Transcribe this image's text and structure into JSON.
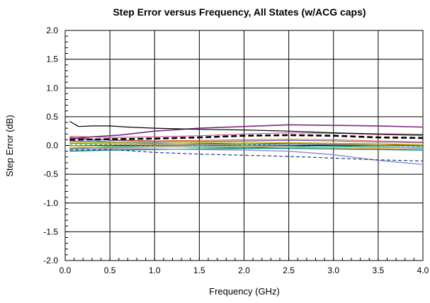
{
  "chart_data": {
    "type": "line",
    "title": "Step Error versus Frequency, All States (w/ACG caps)",
    "xlabel": "Frequency (GHz)",
    "ylabel": "Step Error (dB)",
    "xlim": [
      0.0,
      4.0
    ],
    "ylim": [
      -2.0,
      2.0
    ],
    "x_ticks": [
      "0.0",
      "0.5",
      "1.0",
      "1.5",
      "2.0",
      "2.5",
      "3.0",
      "3.5",
      "4.0"
    ],
    "y_ticks": [
      "2.0",
      "1.5",
      "1.0",
      "0.5",
      "0.0",
      "-0.5",
      "-1.0",
      "-1.5",
      "-2.0"
    ],
    "grid": true,
    "legend": "none",
    "series": [
      {
        "color": "#000000",
        "dash": "",
        "width": 1.2,
        "x": [
          0.05,
          0.15,
          0.3,
          0.5,
          0.7,
          1.0,
          1.5,
          2.0,
          2.5,
          3.0,
          3.5,
          4.0
        ],
        "y": [
          0.42,
          0.33,
          0.34,
          0.34,
          0.32,
          0.3,
          0.28,
          0.27,
          0.25,
          0.22,
          0.2,
          0.19
        ]
      },
      {
        "color": "#7b2a7b",
        "dash": "",
        "width": 1.6,
        "x": [
          0.05,
          0.3,
          0.6,
          1.0,
          1.5,
          2.0,
          2.5,
          3.0,
          3.5,
          4.0
        ],
        "y": [
          0.12,
          0.15,
          0.18,
          0.25,
          0.3,
          0.33,
          0.36,
          0.35,
          0.34,
          0.32
        ]
      },
      {
        "color": "#000000",
        "dash": "8,4",
        "width": 2.6,
        "x": [
          0.05,
          0.5,
          1.0,
          1.5,
          2.0,
          2.5,
          3.0,
          3.5,
          4.0
        ],
        "y": [
          0.1,
          0.11,
          0.12,
          0.14,
          0.17,
          0.18,
          0.17,
          0.14,
          0.13
        ]
      },
      {
        "color": "#c04080",
        "dash": "",
        "width": 1.0,
        "x": [
          0.05,
          0.5,
          1.0,
          1.5,
          2.0,
          2.5,
          3.0,
          3.5,
          4.0
        ],
        "y": [
          0.16,
          0.14,
          0.15,
          0.17,
          0.2,
          0.22,
          0.21,
          0.19,
          0.17
        ]
      },
      {
        "color": "#e06020",
        "dash": "",
        "width": 1.0,
        "x": [
          0.05,
          0.5,
          1.0,
          1.5,
          2.0,
          2.5,
          3.0,
          3.5,
          4.0
        ],
        "y": [
          0.12,
          0.1,
          0.08,
          0.09,
          0.1,
          0.11,
          0.1,
          0.08,
          0.06
        ]
      },
      {
        "color": "#c0c000",
        "dash": "",
        "width": 1.2,
        "x": [
          0.05,
          0.5,
          1.0,
          1.5,
          2.0,
          2.5,
          3.0,
          3.5,
          4.0
        ],
        "y": [
          0.06,
          0.05,
          0.04,
          0.05,
          0.06,
          0.05,
          0.04,
          0.03,
          0.02
        ]
      },
      {
        "color": "#3060c0",
        "dash": "",
        "width": 1.0,
        "x": [
          0.05,
          0.5,
          1.0,
          1.5,
          2.0,
          2.5,
          3.0,
          3.5,
          4.0
        ],
        "y": [
          0.08,
          0.06,
          0.05,
          0.04,
          0.03,
          0.02,
          0.01,
          0.0,
          -0.01
        ]
      },
      {
        "color": "#20a040",
        "dash": "4,3",
        "width": 1.0,
        "x": [
          0.05,
          0.5,
          1.0,
          1.5,
          2.0,
          2.5,
          3.0,
          3.5,
          4.0
        ],
        "y": [
          0.02,
          0.01,
          0.0,
          0.0,
          0.01,
          0.02,
          0.01,
          0.0,
          -0.02
        ]
      },
      {
        "color": "#40c0c0",
        "dash": "",
        "width": 1.0,
        "x": [
          0.05,
          0.5,
          1.0,
          1.5,
          2.0,
          2.5,
          3.0,
          3.5,
          4.0
        ],
        "y": [
          0.0,
          -0.01,
          -0.02,
          -0.02,
          -0.01,
          -0.01,
          -0.02,
          -0.03,
          -0.04
        ]
      },
      {
        "color": "#ff9000",
        "dash": "",
        "width": 1.0,
        "x": [
          0.05,
          0.5,
          1.0,
          1.5,
          2.0,
          2.5,
          3.0,
          3.5,
          4.0
        ],
        "y": [
          -0.03,
          -0.04,
          -0.03,
          -0.02,
          -0.02,
          -0.03,
          -0.04,
          -0.05,
          -0.07
        ]
      },
      {
        "color": "#204080",
        "dash": "5,3",
        "width": 1.2,
        "x": [
          0.05,
          0.5,
          1.0,
          1.5,
          2.0,
          2.5,
          3.0,
          3.5,
          4.0
        ],
        "y": [
          -0.08,
          -0.07,
          -0.12,
          -0.15,
          -0.17,
          -0.19,
          -0.22,
          -0.25,
          -0.27
        ]
      },
      {
        "color": "#8c8cd0",
        "dash": "",
        "width": 1.4,
        "x": [
          0.05,
          0.5,
          1.0,
          1.5,
          2.0,
          2.5,
          3.0,
          3.5,
          4.0
        ],
        "y": [
          -0.06,
          -0.05,
          -0.06,
          -0.07,
          -0.08,
          -0.1,
          -0.16,
          -0.26,
          -0.33
        ]
      },
      {
        "color": "#108080",
        "dash": "",
        "width": 1.4,
        "x": [
          0.05,
          0.5,
          1.0,
          1.5,
          2.0,
          2.5,
          3.0,
          3.5,
          4.0
        ],
        "y": [
          -0.1,
          -0.08,
          -0.07,
          -0.06,
          -0.05,
          -0.05,
          -0.06,
          -0.07,
          -0.08
        ]
      },
      {
        "color": "#a05020",
        "dash": "",
        "width": 1.0,
        "x": [
          0.05,
          0.5,
          1.0,
          1.5,
          2.0,
          2.5,
          3.0,
          3.5,
          4.0
        ],
        "y": [
          0.04,
          0.03,
          0.02,
          0.02,
          0.03,
          0.04,
          0.03,
          0.02,
          0.0
        ]
      },
      {
        "color": "#6a3fa0",
        "dash": "",
        "width": 1.0,
        "x": [
          0.05,
          0.5,
          1.0,
          1.5,
          2.0,
          2.5,
          3.0,
          3.5,
          4.0
        ],
        "y": [
          0.14,
          0.09,
          0.07,
          0.07,
          0.08,
          0.09,
          0.08,
          0.06,
          0.05
        ]
      },
      {
        "color": "#40a0e0",
        "dash": "",
        "width": 1.0,
        "x": [
          0.05,
          0.5,
          1.0,
          1.5,
          2.0,
          2.5,
          3.0,
          3.5,
          4.0
        ],
        "y": [
          0.13,
          0.06,
          0.03,
          0.01,
          0.0,
          -0.01,
          -0.02,
          -0.03,
          -0.05
        ]
      },
      {
        "color": "#e0d040",
        "dash": "",
        "width": 1.0,
        "x": [
          0.05,
          0.5,
          1.0,
          1.5,
          2.0,
          2.5,
          3.0,
          3.5,
          4.0
        ],
        "y": [
          -0.01,
          -0.02,
          -0.01,
          0.0,
          0.02,
          0.04,
          0.02,
          0.0,
          -0.01
        ]
      },
      {
        "color": "#2a8a2a",
        "dash": "",
        "width": 1.0,
        "x": [
          0.05,
          0.5,
          1.0,
          1.5,
          2.0,
          2.5,
          3.0,
          3.5,
          4.0
        ],
        "y": [
          -0.05,
          -0.03,
          -0.02,
          -0.03,
          -0.04,
          -0.03,
          -0.01,
          -0.02,
          -0.05
        ]
      }
    ]
  }
}
